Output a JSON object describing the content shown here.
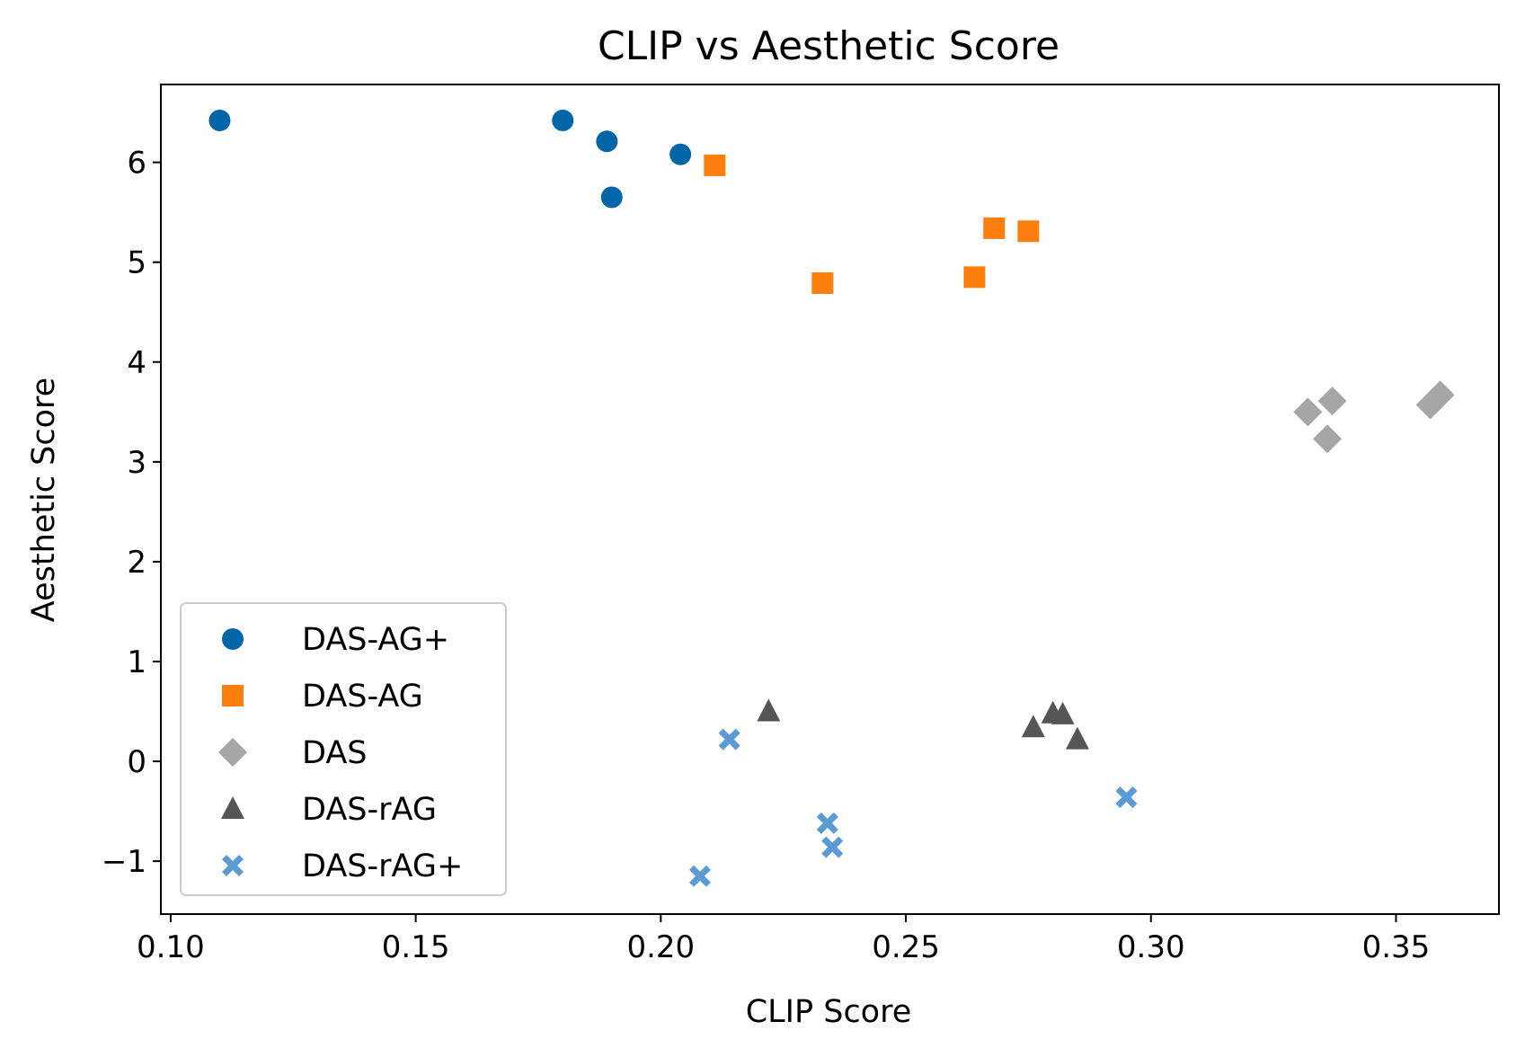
{
  "chart_data": {
    "type": "scatter",
    "title": "CLIP vs Aesthetic Score",
    "xlabel": "CLIP Score",
    "ylabel": "Aesthetic Score",
    "xlim": [
      0.098,
      0.371
    ],
    "ylim": [
      -1.53,
      6.78
    ],
    "xticks": [
      0.1,
      0.15,
      0.2,
      0.25,
      0.3,
      0.35
    ],
    "xtick_labels": [
      "0.10",
      "0.15",
      "0.20",
      "0.25",
      "0.30",
      "0.35"
    ],
    "yticks": [
      -1,
      0,
      1,
      2,
      3,
      4,
      5,
      6
    ],
    "ytick_labels": [
      "−1",
      "0",
      "1",
      "2",
      "3",
      "4",
      "5",
      "6"
    ],
    "grid": false,
    "legend_position": "lower-left",
    "series": [
      {
        "name": "DAS-AG+",
        "marker": "circle",
        "color": "#0066a8",
        "points": [
          [
            0.11,
            6.42
          ],
          [
            0.18,
            6.42
          ],
          [
            0.189,
            6.21
          ],
          [
            0.19,
            5.65
          ],
          [
            0.204,
            6.08
          ]
        ]
      },
      {
        "name": "DAS-AG",
        "marker": "square",
        "color": "#ff7f0e",
        "points": [
          [
            0.211,
            5.97
          ],
          [
            0.233,
            4.79
          ],
          [
            0.264,
            4.85
          ],
          [
            0.268,
            5.34
          ],
          [
            0.275,
            5.31
          ]
        ]
      },
      {
        "name": "DAS",
        "marker": "diamond",
        "color": "#a6a6a6",
        "points": [
          [
            0.332,
            3.5
          ],
          [
            0.336,
            3.23
          ],
          [
            0.337,
            3.61
          ],
          [
            0.357,
            3.57
          ],
          [
            0.359,
            3.67
          ]
        ]
      },
      {
        "name": "DAS-rAG",
        "marker": "triangle",
        "color": "#555555",
        "points": [
          [
            0.222,
            0.5
          ],
          [
            0.276,
            0.34
          ],
          [
            0.28,
            0.48
          ],
          [
            0.282,
            0.47
          ],
          [
            0.285,
            0.22
          ]
        ]
      },
      {
        "name": "DAS-rAG+",
        "marker": "x",
        "color": "#5b9bd5",
        "points": [
          [
            0.208,
            -1.15
          ],
          [
            0.214,
            0.22
          ],
          [
            0.234,
            -0.62
          ],
          [
            0.235,
            -0.86
          ],
          [
            0.295,
            -0.36
          ]
        ]
      }
    ]
  }
}
